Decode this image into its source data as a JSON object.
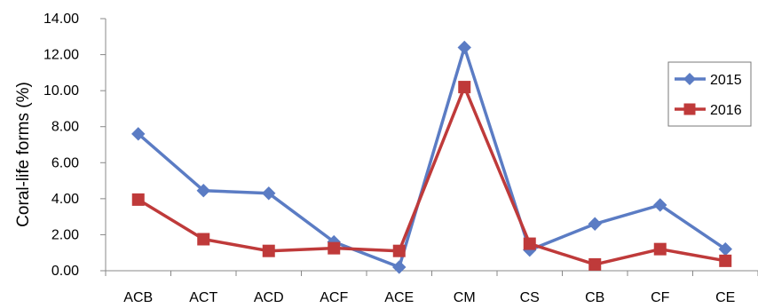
{
  "chart_data": {
    "type": "line",
    "categories": [
      "ACB",
      "ACT",
      "ACD",
      "ACF",
      "ACE",
      "CM",
      "CS",
      "CB",
      "CF",
      "CE"
    ],
    "series": [
      {
        "name": "2015",
        "values": [
          7.6,
          4.45,
          4.3,
          1.6,
          0.2,
          12.4,
          1.15,
          2.6,
          3.65,
          1.2
        ],
        "color": "#5b7cc4",
        "marker": "diamond"
      },
      {
        "name": "2016",
        "values": [
          3.95,
          1.75,
          1.1,
          1.25,
          1.1,
          10.2,
          1.5,
          0.35,
          1.2,
          0.55
        ],
        "color": "#bf3a3a",
        "marker": "square"
      }
    ],
    "xlabel": "",
    "ylabel": "Coral-life forms (%)",
    "ylim": [
      0,
      14
    ],
    "yticks": [
      "0.00",
      "2.00",
      "4.00",
      "6.00",
      "8.00",
      "10.00",
      "12.00",
      "14.00"
    ],
    "yticks_values": [
      0,
      2,
      4,
      6,
      8,
      10,
      12,
      14
    ],
    "grid": false,
    "legend_position": "right"
  }
}
